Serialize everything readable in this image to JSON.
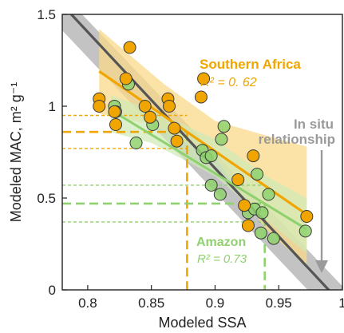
{
  "chart_data": {
    "type": "scatter",
    "xlabel": "Modeled SSA",
    "ylabel": "Modeled MAC, m² g⁻¹",
    "xlim": [
      0.78,
      1.0
    ],
    "ylim": [
      0,
      1.5
    ],
    "xticks": [
      "0.8",
      "0.85",
      "0.9",
      "0.95",
      "1"
    ],
    "yticks": [
      "0",
      "0.5",
      "1",
      "1.5"
    ],
    "grid": false,
    "colors": {
      "southern_africa": "#f0a500",
      "southern_africa_band": "#f9d98a",
      "amazon": "#8fd16e",
      "amazon_band": "#cdeab7",
      "insitu": "#555555",
      "insitu_band": "#b8b8b8",
      "arrow": "#9a9a9a"
    },
    "series": [
      {
        "name": "Southern Africa",
        "points": [
          [
            0.809,
            1.04
          ],
          [
            0.809,
            1.0
          ],
          [
            0.821,
            0.97
          ],
          [
            0.822,
            0.9
          ],
          [
            0.83,
            1.15
          ],
          [
            0.833,
            1.32
          ],
          [
            0.845,
            1.0
          ],
          [
            0.849,
            0.94
          ],
          [
            0.863,
            1.04
          ],
          [
            0.864,
            1.0
          ],
          [
            0.868,
            0.88
          ],
          [
            0.87,
            0.81
          ],
          [
            0.889,
            1.05
          ],
          [
            0.891,
            1.15
          ],
          [
            0.918,
            0.6
          ],
          [
            0.923,
            0.46
          ],
          [
            0.926,
            0.35
          ],
          [
            0.93,
            0.73
          ],
          [
            0.972,
            0.4
          ]
        ],
        "fit": [
          [
            0.809,
            1.19
          ],
          [
            0.972,
            0.41
          ]
        ],
        "band_upper": [
          [
            0.809,
            1.42
          ],
          [
            0.86,
            1.12
          ],
          [
            0.9,
            0.92
          ],
          [
            0.94,
            0.84
          ],
          [
            0.972,
            0.78
          ]
        ],
        "band_lower": [
          [
            0.809,
            0.96
          ],
          [
            0.85,
            0.9
          ],
          [
            0.9,
            0.72
          ],
          [
            0.94,
            0.33
          ],
          [
            0.972,
            0.13
          ]
        ],
        "r2_label": "R² = 0. 62"
      },
      {
        "name": "Amazon",
        "points": [
          [
            0.821,
            1.0
          ],
          [
            0.822,
            0.97
          ],
          [
            0.832,
            1.12
          ],
          [
            0.838,
            0.8
          ],
          [
            0.851,
            0.9
          ],
          [
            0.89,
            0.76
          ],
          [
            0.893,
            0.72
          ],
          [
            0.897,
            0.73
          ],
          [
            0.897,
            0.57
          ],
          [
            0.904,
            0.52
          ],
          [
            0.905,
            0.82
          ],
          [
            0.907,
            0.89
          ],
          [
            0.926,
            0.42
          ],
          [
            0.931,
            0.44
          ],
          [
            0.936,
            0.31
          ],
          [
            0.937,
            0.42
          ],
          [
            0.942,
            0.52
          ],
          [
            0.946,
            0.28
          ],
          [
            0.933,
            0.63
          ],
          [
            0.971,
            0.32
          ]
        ],
        "fit": [
          [
            0.818,
            0.98
          ],
          [
            0.972,
            0.33
          ]
        ],
        "band_upper": [
          [
            0.818,
            1.06
          ],
          [
            0.85,
            0.98
          ],
          [
            0.9,
            0.82
          ],
          [
            0.94,
            0.62
          ],
          [
            0.972,
            0.5
          ]
        ],
        "band_lower": [
          [
            0.818,
            0.86
          ],
          [
            0.85,
            0.8
          ],
          [
            0.9,
            0.62
          ],
          [
            0.94,
            0.38
          ],
          [
            0.972,
            0.2
          ]
        ],
        "r2_label": "R² = 0.73"
      },
      {
        "name": "In situ relationship",
        "fit": [
          [
            0.779,
            1.56
          ],
          [
            1.0,
            -0.08
          ]
        ],
        "band_upper": [
          [
            0.779,
            1.62
          ],
          [
            1.0,
            0.02
          ]
        ],
        "band_lower": [
          [
            0.779,
            1.42
          ],
          [
            1.0,
            -0.2
          ]
        ]
      }
    ],
    "reference_lines": {
      "southern_africa": {
        "x": 0.878,
        "y": 0.86,
        "y_low": 0.77,
        "y_high": 0.95
      },
      "amazon": {
        "x": 0.939,
        "y": 0.47,
        "y_low": 0.37,
        "y_high": 0.57
      }
    },
    "annotations": {
      "southern_africa_title": "Southern Africa",
      "amazon_title": "Amazon",
      "insitu_line1": "In situ",
      "insitu_line2": "relationship"
    }
  }
}
